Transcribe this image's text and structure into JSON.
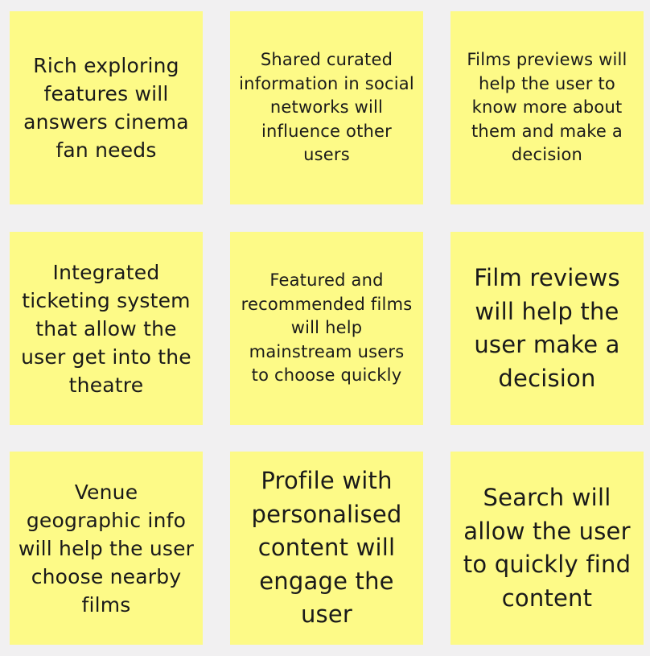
{
  "notes": [
    {
      "text": "Rich exploring features will answers cinema fan needs"
    },
    {
      "text": "Shared curated information in social networks will influence other users"
    },
    {
      "text": "Films previews will help the user to know more about them and make a decision"
    },
    {
      "text": "Integrated ticketing system that allow the user get into the theatre"
    },
    {
      "text": "Featured and recommended films will help mainstream users to choose quickly"
    },
    {
      "text": "Film reviews will help the user make a decision"
    },
    {
      "text": "Venue geographic info will help the user choose nearby films"
    },
    {
      "text": "Profile with personalised content will engage the user"
    },
    {
      "text": "Search will allow the user to quickly find content"
    }
  ],
  "colors": {
    "background": "#f1f0f1",
    "note": "#fdfa87",
    "text": "#1a1a1a"
  }
}
